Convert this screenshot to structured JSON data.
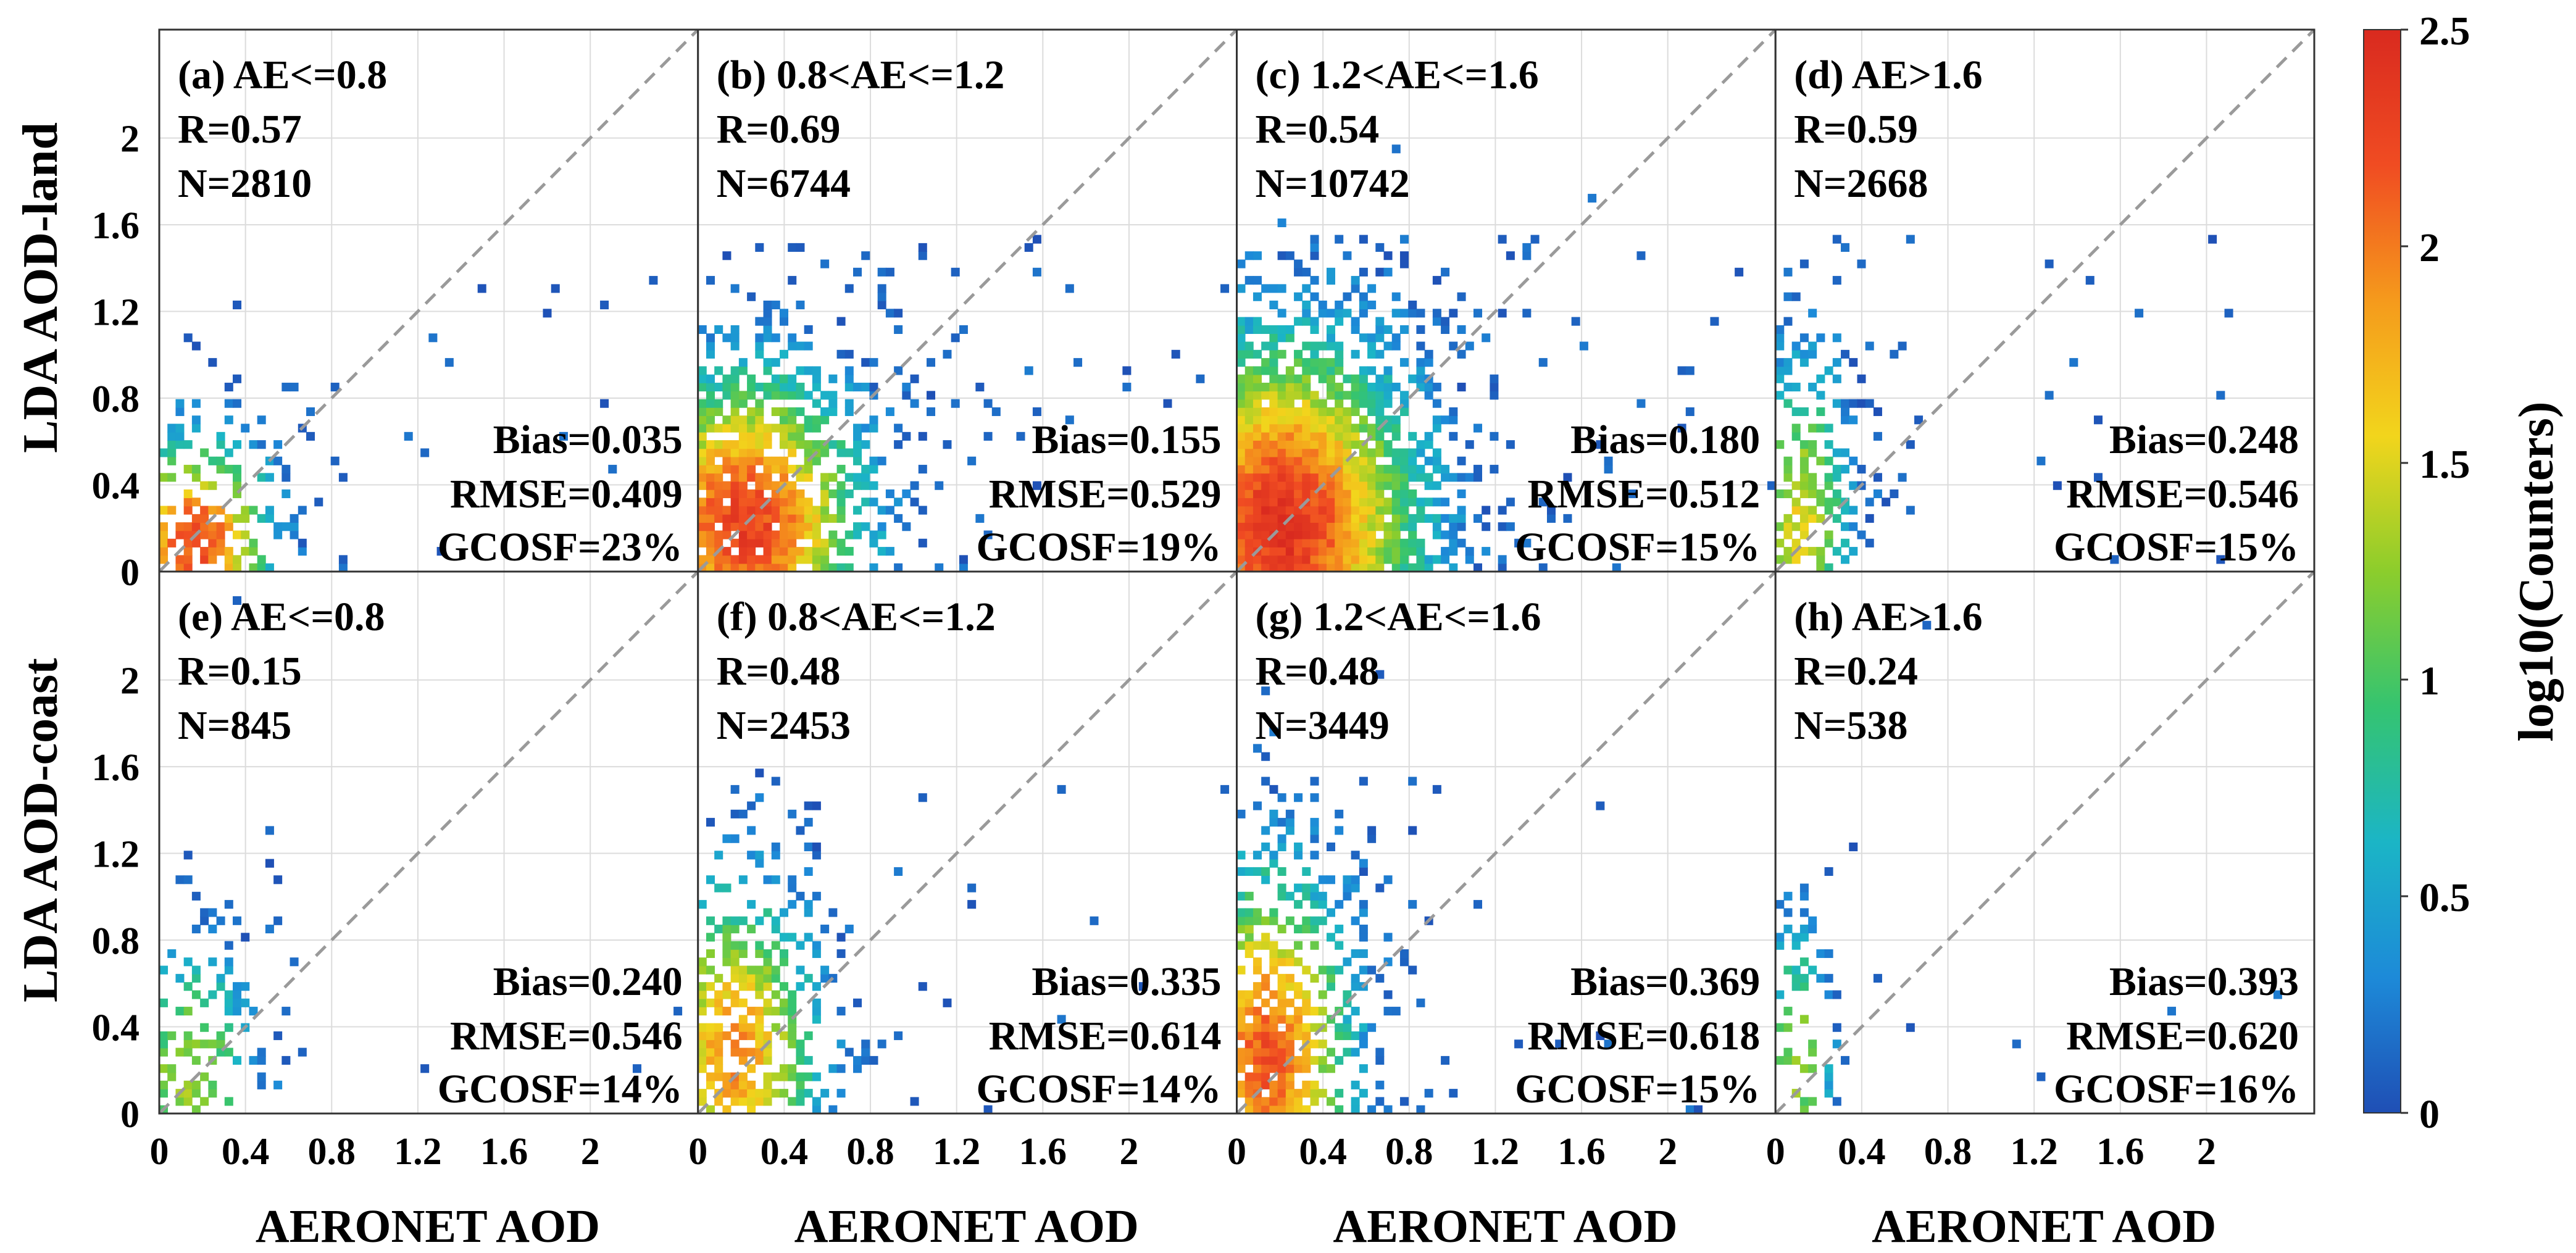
{
  "chart_data": {
    "type": "heatmap",
    "x_range": [
      0,
      2.5
    ],
    "y_range": [
      0,
      2.5
    ],
    "x_ticks": [
      "0",
      "0.4",
      "0.8",
      "1.2",
      "1.6",
      "2"
    ],
    "y_ticks": [
      "0",
      "0.4",
      "0.8",
      "1.2",
      "1.6",
      "2"
    ],
    "row_labels": [
      "LDA AOD-land",
      "LDA AOD-coast"
    ],
    "xlabel": "AERONET AOD",
    "colorbar": {
      "label": "log10(Counters)",
      "range": [
        0,
        2.5
      ],
      "ticks": [
        "0",
        "0.5",
        "1",
        "1.5",
        "2",
        "2.5"
      ],
      "colormap": [
        "#1f4fb5",
        "#1d8ad8",
        "#1bb5c6",
        "#35c470",
        "#8ccd2c",
        "#f2d51c",
        "#f59a1c",
        "#f04c22",
        "#d92a1f"
      ]
    },
    "reference_line": "1:1 dashed",
    "panels": [
      {
        "title": "(a) AE<=0.8",
        "r": "R=0.57",
        "n": "N=2810",
        "bias": "Bias=0.035",
        "rmse": "RMSE=0.409",
        "gcosf": "GCOSF=23%",
        "mode_x": 0.15,
        "mode_y": 0.12,
        "spread_x": 0.22,
        "spread_y": 0.3,
        "peak": 2.25,
        "density": 0.35
      },
      {
        "title": "(b) 0.8<AE<=1.2",
        "r": "R=0.69",
        "n": "N=6744",
        "bias": "Bias=0.155",
        "rmse": "RMSE=0.529",
        "gcosf": "GCOSF=19%",
        "mode_x": 0.2,
        "mode_y": 0.2,
        "spread_x": 0.35,
        "spread_y": 0.45,
        "peak": 2.3,
        "density": 0.6
      },
      {
        "title": "(c) 1.2<AE<=1.6",
        "r": "R=0.54",
        "n": "N=10742",
        "bias": "Bias=0.180",
        "rmse": "RMSE=0.512",
        "gcosf": "GCOSF=15%",
        "mode_x": 0.2,
        "mode_y": 0.2,
        "spread_x": 0.4,
        "spread_y": 0.55,
        "peak": 2.4,
        "density": 0.8
      },
      {
        "title": "(d) AE>1.6",
        "r": "R=0.59",
        "n": "N=2668",
        "bias": "Bias=0.248",
        "rmse": "RMSE=0.546",
        "gcosf": "GCOSF=15%",
        "mode_x": 0.1,
        "mode_y": 0.2,
        "spread_x": 0.15,
        "spread_y": 0.5,
        "peak": 1.5,
        "density": 0.4
      },
      {
        "title": "(e) AE<=0.8",
        "r": "R=0.15",
        "n": "N=845",
        "bias": "Bias=0.240",
        "rmse": "RMSE=0.546",
        "gcosf": "GCOSF=14%",
        "mode_x": 0.12,
        "mode_y": 0.2,
        "spread_x": 0.2,
        "spread_y": 0.35,
        "peak": 1.3,
        "density": 0.25
      },
      {
        "title": "(f) 0.8<AE<=1.2",
        "r": "R=0.48",
        "n": "N=2453",
        "bias": "Bias=0.335",
        "rmse": "RMSE=0.614",
        "gcosf": "GCOSF=14%",
        "mode_x": 0.15,
        "mode_y": 0.25,
        "spread_x": 0.25,
        "spread_y": 0.5,
        "peak": 1.9,
        "density": 0.45
      },
      {
        "title": "(g) 1.2<AE<=1.6",
        "r": "R=0.48",
        "n": "N=3449",
        "bias": "Bias=0.369",
        "rmse": "RMSE=0.618",
        "gcosf": "GCOSF=15%",
        "mode_x": 0.12,
        "mode_y": 0.25,
        "spread_x": 0.25,
        "spread_y": 0.55,
        "peak": 2.15,
        "density": 0.5
      },
      {
        "title": "(h) AE>1.6",
        "r": "R=0.24",
        "n": "N=538",
        "bias": "Bias=0.393",
        "rmse": "RMSE=0.620",
        "gcosf": "GCOSF=16%",
        "mode_x": 0.08,
        "mode_y": 0.2,
        "spread_x": 0.1,
        "spread_y": 0.45,
        "peak": 1.3,
        "density": 0.2
      }
    ]
  }
}
